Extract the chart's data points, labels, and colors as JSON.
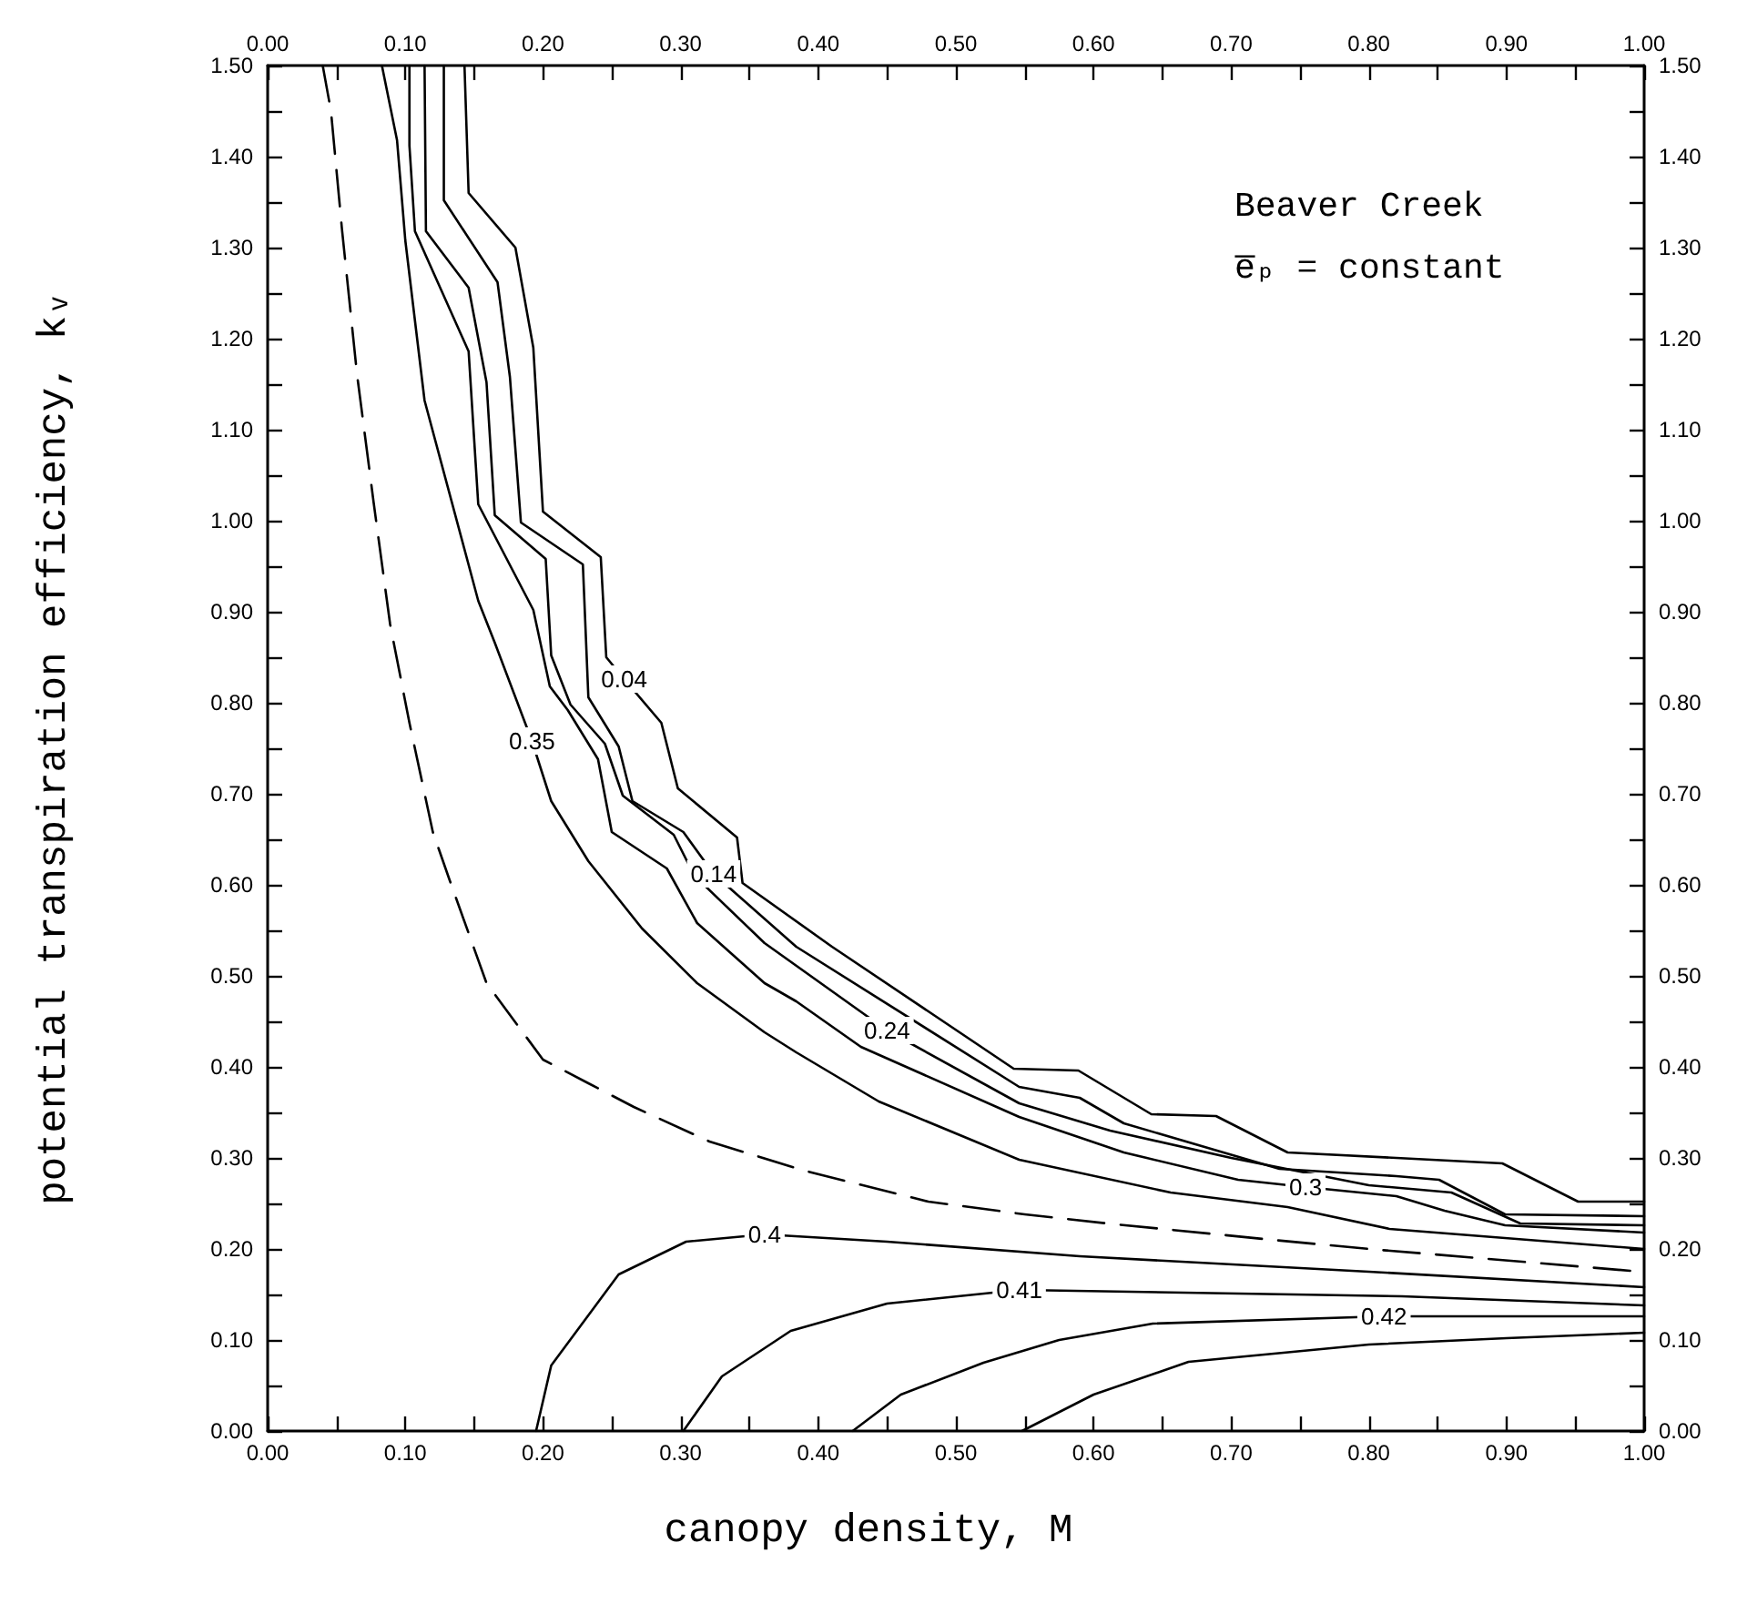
{
  "chart_data": {
    "type": "line",
    "xlabel": "canopy density, M",
    "ylabel": "potential transpiration efficiency, kᵥ",
    "annotations": [
      "Beaver Creek",
      "e̅ₚ = constant"
    ],
    "marker": "none",
    "line_style": "solid",
    "legend": false,
    "grid": false,
    "xlim": [
      0,
      1
    ],
    "ylim": [
      0,
      1.5
    ],
    "x2lim": [
      0,
      1
    ],
    "y2lim": [
      0,
      1.5
    ],
    "xticks": [
      {
        "value": 0,
        "label": "0.00"
      },
      {
        "value": 0.05,
        "label": null
      },
      {
        "value": 0.1,
        "label": "0.10"
      },
      {
        "value": 0.15,
        "label": null
      },
      {
        "value": 0.2,
        "label": "0.20"
      },
      {
        "value": 0.25,
        "label": null
      },
      {
        "value": 0.3,
        "label": "0.30"
      },
      {
        "value": 0.35,
        "label": null
      },
      {
        "value": 0.4,
        "label": "0.40"
      },
      {
        "value": 0.45,
        "label": null
      },
      {
        "value": 0.5,
        "label": "0.50"
      },
      {
        "value": 0.55,
        "label": null
      },
      {
        "value": 0.6,
        "label": "0.60"
      },
      {
        "value": 0.65,
        "label": null
      },
      {
        "value": 0.7,
        "label": "0.70"
      },
      {
        "value": 0.75,
        "label": null
      },
      {
        "value": 0.8,
        "label": "0.80"
      },
      {
        "value": 0.85,
        "label": null
      },
      {
        "value": 0.9,
        "label": "0.90"
      },
      {
        "value": 0.95,
        "label": null
      },
      {
        "value": 1,
        "label": "1.00"
      }
    ],
    "x2ticks": [
      {
        "value": 0,
        "label": "0.00"
      },
      {
        "value": 0.05,
        "label": null
      },
      {
        "value": 0.1,
        "label": "0.10"
      },
      {
        "value": 0.15,
        "label": null
      },
      {
        "value": 0.2,
        "label": "0.20"
      },
      {
        "value": 0.25,
        "label": null
      },
      {
        "value": 0.3,
        "label": "0.30"
      },
      {
        "value": 0.35,
        "label": null
      },
      {
        "value": 0.4,
        "label": "0.40"
      },
      {
        "value": 0.45,
        "label": null
      },
      {
        "value": 0.5,
        "label": "0.50"
      },
      {
        "value": 0.55,
        "label": null
      },
      {
        "value": 0.6,
        "label": "0.60"
      },
      {
        "value": 0.65,
        "label": null
      },
      {
        "value": 0.7,
        "label": "0.70"
      },
      {
        "value": 0.75,
        "label": null
      },
      {
        "value": 0.8,
        "label": "0.80"
      },
      {
        "value": 0.85,
        "label": null
      },
      {
        "value": 0.9,
        "label": "0.90"
      },
      {
        "value": 0.95,
        "label": null
      },
      {
        "value": 1,
        "label": "1.00"
      }
    ],
    "yticks": [
      {
        "value": 0,
        "label": "0.00"
      },
      {
        "value": 0.05,
        "label": null
      },
      {
        "value": 0.1,
        "label": "0.10"
      },
      {
        "value": 0.15,
        "label": null
      },
      {
        "value": 0.2,
        "label": "0.20"
      },
      {
        "value": 0.25,
        "label": null
      },
      {
        "value": 0.3,
        "label": "0.30"
      },
      {
        "value": 0.35,
        "label": null
      },
      {
        "value": 0.4,
        "label": "0.40"
      },
      {
        "value": 0.45,
        "label": null
      },
      {
        "value": 0.5,
        "label": "0.50"
      },
      {
        "value": 0.55,
        "label": null
      },
      {
        "value": 0.6,
        "label": "0.60"
      },
      {
        "value": 0.65,
        "label": null
      },
      {
        "value": 0.7,
        "label": "0.70"
      },
      {
        "value": 0.75,
        "label": null
      },
      {
        "value": 0.8,
        "label": "0.80"
      },
      {
        "value": 0.85,
        "label": null
      },
      {
        "value": 0.9,
        "label": "0.90"
      },
      {
        "value": 0.95,
        "label": null
      },
      {
        "value": 1,
        "label": "1.00"
      },
      {
        "value": 1.05,
        "label": null
      },
      {
        "value": 1.1,
        "label": "1.10"
      },
      {
        "value": 1.15,
        "label": null
      },
      {
        "value": 1.2,
        "label": "1.20"
      },
      {
        "value": 1.25,
        "label": null
      },
      {
        "value": 1.3,
        "label": "1.30"
      },
      {
        "value": 1.35,
        "label": null
      },
      {
        "value": 1.4,
        "label": "1.40"
      },
      {
        "value": 1.45,
        "label": null
      },
      {
        "value": 1.5,
        "label": "1.50"
      }
    ],
    "y2ticks": [
      {
        "value": 0,
        "label": "0.00"
      },
      {
        "value": 0.05,
        "label": null
      },
      {
        "value": 0.1,
        "label": "0.10"
      },
      {
        "value": 0.15,
        "label": null
      },
      {
        "value": 0.2,
        "label": "0.20"
      },
      {
        "value": 0.25,
        "label": null
      },
      {
        "value": 0.3,
        "label": "0.30"
      },
      {
        "value": 0.35,
        "label": null
      },
      {
        "value": 0.4,
        "label": "0.40"
      },
      {
        "value": 0.45,
        "label": null
      },
      {
        "value": 0.5,
        "label": "0.50"
      },
      {
        "value": 0.55,
        "label": null
      },
      {
        "value": 0.6,
        "label": "0.60"
      },
      {
        "value": 0.65,
        "label": null
      },
      {
        "value": 0.7,
        "label": "0.70"
      },
      {
        "value": 0.75,
        "label": null
      },
      {
        "value": 0.8,
        "label": "0.80"
      },
      {
        "value": 0.85,
        "label": null
      },
      {
        "value": 0.9,
        "label": "0.90"
      },
      {
        "value": 0.95,
        "label": null
      },
      {
        "value": 1,
        "label": "1.00"
      },
      {
        "value": 1.05,
        "label": null
      },
      {
        "value": 1.1,
        "label": "1.10"
      },
      {
        "value": 1.15,
        "label": null
      },
      {
        "value": 1.2,
        "label": "1.20"
      },
      {
        "value": 1.25,
        "label": null
      },
      {
        "value": 1.3,
        "label": "1.30"
      },
      {
        "value": 1.35,
        "label": null
      },
      {
        "value": 1.4,
        "label": "1.40"
      },
      {
        "value": 1.45,
        "label": null
      },
      {
        "value": 1.5,
        "label": "1.50"
      }
    ],
    "series": [
      {
        "name": "0.04",
        "color": "#000000",
        "x": [
          0.143,
          0.146,
          0.18,
          0.193,
          0.2,
          0.242,
          0.246,
          0.259,
          0.286,
          0.298,
          0.341,
          0.345,
          0.41,
          0.542,
          0.589,
          0.642,
          0.689,
          0.741,
          0.82,
          0.897,
          0.952,
          1.0
        ],
        "values": [
          1.5,
          1.36,
          1.3,
          1.19,
          1.01,
          0.96,
          0.85,
          0.826,
          0.778,
          0.706,
          0.652,
          0.602,
          0.532,
          0.398,
          0.396,
          0.348,
          0.346,
          0.306,
          0.3,
          0.294,
          0.252,
          0.252
        ]
      },
      {
        "name": "0.14",
        "color": "#000000",
        "x": [
          0.128,
          0.128,
          0.167,
          0.176,
          0.184,
          0.229,
          0.233,
          0.255,
          0.265,
          0.302,
          0.324,
          0.384,
          0.546,
          0.59,
          0.622,
          0.735,
          0.82,
          0.851,
          0.899,
          1.0
        ],
        "values": [
          1.5,
          1.352,
          1.262,
          1.158,
          0.998,
          0.952,
          0.806,
          0.752,
          0.692,
          0.658,
          0.612,
          0.532,
          0.378,
          0.366,
          0.338,
          0.288,
          0.28,
          0.276,
          0.238,
          0.236
        ]
      },
      {
        "name": "0.24",
        "color": "#000000",
        "x": [
          0.114,
          0.115,
          0.146,
          0.159,
          0.165,
          0.202,
          0.206,
          0.22,
          0.245,
          0.258,
          0.295,
          0.31,
          0.361,
          0.45,
          0.546,
          0.612,
          0.7,
          0.8,
          0.86,
          0.91,
          1.0
        ],
        "values": [
          1.5,
          1.318,
          1.256,
          1.152,
          1.006,
          0.958,
          0.852,
          0.798,
          0.755,
          0.698,
          0.655,
          0.61,
          0.536,
          0.44,
          0.36,
          0.33,
          0.3,
          0.27,
          0.262,
          0.228,
          0.226
        ]
      },
      {
        "name": "0.3",
        "color": "#000000",
        "x": [
          0.103,
          0.103,
          0.107,
          0.146,
          0.153,
          0.193,
          0.205,
          0.218,
          0.24,
          0.25,
          0.29,
          0.312,
          0.361,
          0.384,
          0.431,
          0.546,
          0.622,
          0.705,
          0.754,
          0.82,
          0.855,
          0.899,
          1.0
        ],
        "values": [
          1.5,
          1.412,
          1.318,
          1.186,
          1.018,
          0.902,
          0.818,
          0.792,
          0.738,
          0.658,
          0.618,
          0.558,
          0.492,
          0.472,
          0.422,
          0.345,
          0.306,
          0.276,
          0.268,
          0.258,
          0.242,
          0.226,
          0.218
        ]
      },
      {
        "name": "0.35",
        "color": "#000000",
        "x": [
          0.083,
          0.094,
          0.1,
          0.114,
          0.153,
          0.165,
          0.192,
          0.206,
          0.233,
          0.272,
          0.312,
          0.361,
          0.384,
          0.444,
          0.546,
          0.656,
          0.741,
          0.815,
          1.0
        ],
        "values": [
          1.5,
          1.418,
          1.308,
          1.132,
          0.912,
          0.866,
          0.758,
          0.692,
          0.626,
          0.552,
          0.492,
          0.438,
          0.416,
          0.362,
          0.298,
          0.262,
          0.246,
          0.222,
          0.2
        ]
      },
      {
        "color": "#000000",
        "line_style": "dashed",
        "x": [
          0.04,
          0.046,
          0.054,
          0.065,
          0.077,
          0.089,
          0.103,
          0.12,
          0.132,
          0.159,
          0.2,
          0.233,
          0.266,
          0.321,
          0.39,
          0.48,
          0.55,
          0.61,
          0.73,
          0.8,
          0.99
        ],
        "values": [
          1.5,
          1.45,
          1.32,
          1.16,
          1.02,
          0.886,
          0.778,
          0.658,
          0.606,
          0.492,
          0.408,
          0.382,
          0.356,
          0.318,
          0.286,
          0.252,
          0.238,
          0.228,
          0.21,
          0.2,
          0.176
        ]
      },
      {
        "name": "0.4",
        "color": "#000000",
        "x": [
          0.195,
          0.206,
          0.255,
          0.304,
          0.361,
          0.45,
          0.59,
          0.8,
          1.0
        ],
        "values": [
          0,
          0.072,
          0.172,
          0.208,
          0.216,
          0.208,
          0.192,
          0.175,
          0.158
        ]
      },
      {
        "name": "0.41",
        "color": "#000000",
        "x": [
          0.302,
          0.33,
          0.38,
          0.45,
          0.546,
          0.824,
          1.0
        ],
        "values": [
          0,
          0.06,
          0.11,
          0.14,
          0.155,
          0.148,
          0.138
        ]
      },
      {
        "name": "0.42",
        "color": "#000000",
        "x": [
          0.425,
          0.46,
          0.52,
          0.575,
          0.643,
          0.811,
          1.0
        ],
        "values": [
          0,
          0.04,
          0.075,
          0.1,
          0.118,
          0.126,
          0.126
        ]
      },
      {
        "color": "#000000",
        "x": [
          0.548,
          0.6,
          0.669,
          0.8,
          0.9,
          1.0
        ],
        "values": [
          0,
          0.04,
          0.076,
          0.095,
          0.102,
          0.108
        ]
      }
    ]
  }
}
